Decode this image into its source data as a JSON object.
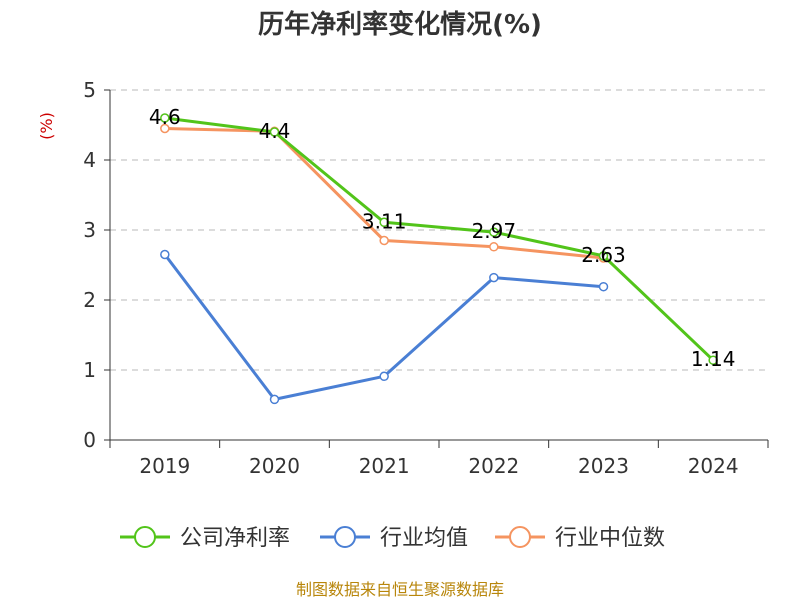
{
  "chart_data": {
    "type": "line",
    "title": "历年净利率变化情况(%)",
    "xlabel": "",
    "ylabel": "(%)",
    "categories": [
      "2019",
      "2020",
      "2021",
      "2022",
      "2023",
      "2024"
    ],
    "ylim": [
      0,
      5
    ],
    "yticks": [
      0,
      1,
      2,
      3,
      4,
      5
    ],
    "grid": true,
    "legend_position": "bottom",
    "series": [
      {
        "name": "公司净利率",
        "color": "#52c41a",
        "values": [
          4.6,
          4.4,
          3.11,
          2.97,
          2.63,
          1.14
        ],
        "labels": [
          "4.6",
          "4.4",
          "3.11",
          "2.97",
          "2.63",
          "1.14"
        ]
      },
      {
        "name": "行业均值",
        "color": "#4a7fd4",
        "values": [
          2.65,
          0.58,
          0.91,
          2.32,
          2.19,
          null
        ]
      },
      {
        "name": "行业中位数",
        "color": "#f59460",
        "values": [
          4.45,
          4.41,
          2.85,
          2.76,
          2.6,
          null
        ]
      }
    ],
    "source": "制图数据来自恒生聚源数据库"
  }
}
